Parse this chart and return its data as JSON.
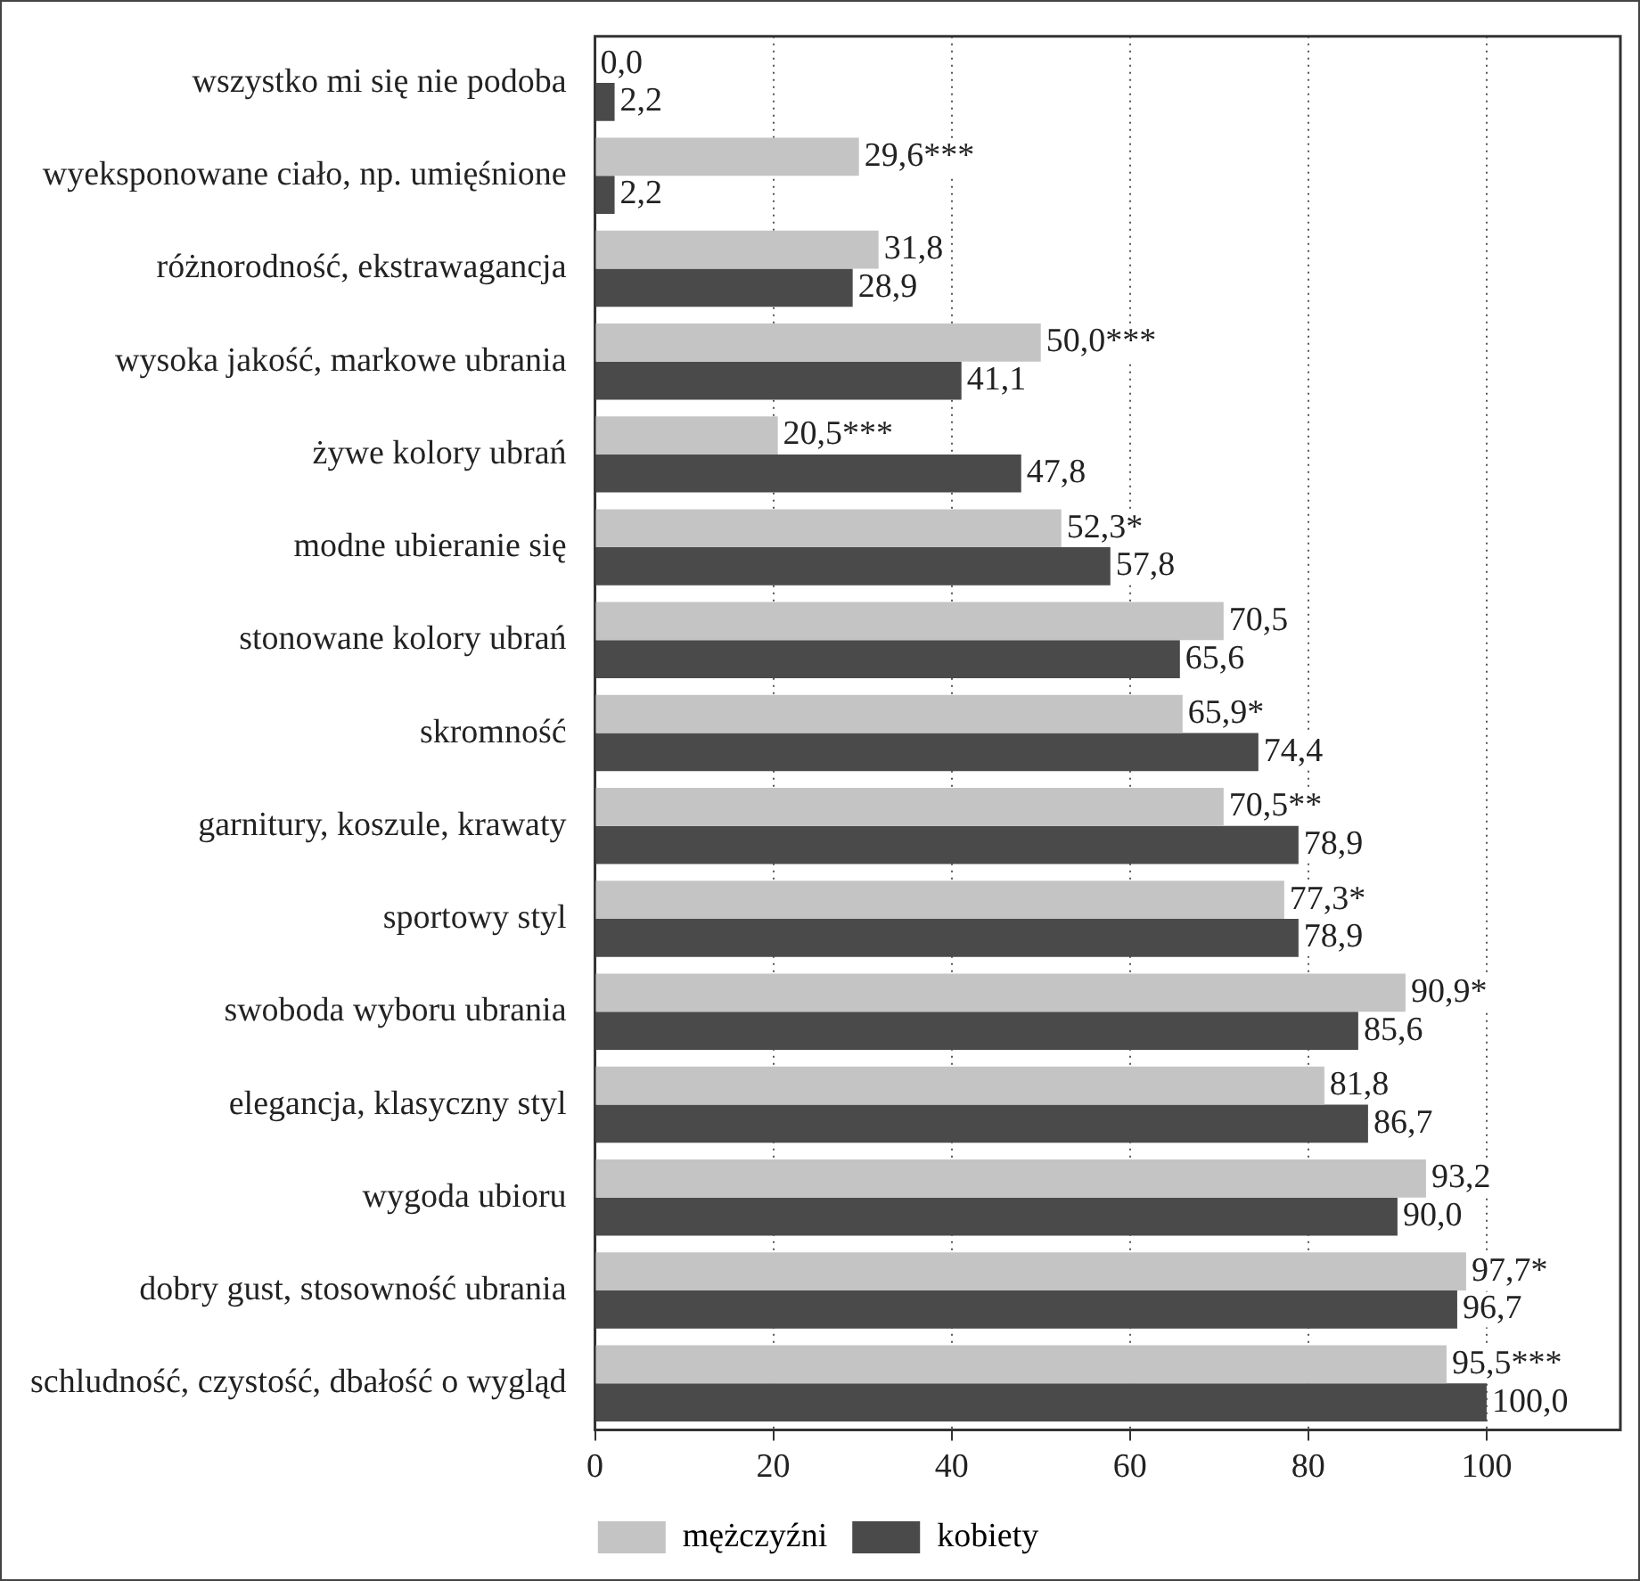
{
  "chart_data": {
    "type": "bar",
    "orientation": "horizontal",
    "categories": [
      "wszystko mi się nie podoba",
      "wyeksponowane ciało, np. umięśnione",
      "różnorodność, ekstrawagancja",
      "wysoka jakość, markowe ubrania",
      "żywe kolory ubrań",
      "modne ubieranie się",
      "stonowane kolory ubrań",
      "skromność",
      "garnitury, koszule, krawaty",
      "sportowy styl",
      "swoboda wyboru ubrania",
      "elegancja, klasyczny styl",
      "wygoda ubioru",
      "dobry gust, stosowność ubrania",
      "schludność, czystość, dbałość o wygląd"
    ],
    "series": [
      {
        "name": "mężczyźni",
        "color": "#c4c4c4",
        "values": [
          0.0,
          29.6,
          31.8,
          50.0,
          20.5,
          52.3,
          70.5,
          65.9,
          70.5,
          77.3,
          90.9,
          81.8,
          93.2,
          97.7,
          95.5
        ],
        "value_labels": [
          "0,0",
          "29,6***",
          "31,8",
          "50,0***",
          "20,5***",
          "52,3*",
          "70,5",
          "65,9*",
          "70,5**",
          "77,3*",
          "90,9*",
          "81,8",
          "93,2",
          "97,7*",
          "95,5***"
        ]
      },
      {
        "name": "kobiety",
        "color": "#4a4a4a",
        "values": [
          2.2,
          2.2,
          28.9,
          41.1,
          47.8,
          57.8,
          65.6,
          74.4,
          78.9,
          78.9,
          85.6,
          86.7,
          90.0,
          96.7,
          100.0
        ],
        "value_labels": [
          "2,2",
          "2,2",
          "28,9",
          "41,1",
          "47,8",
          "57,8",
          "65,6",
          "74,4",
          "78,9",
          "78,9",
          "85,6",
          "86,7",
          "90,0",
          "96,7",
          "100,0"
        ]
      }
    ],
    "xlim": [
      0,
      115
    ],
    "xticks": [
      0,
      20,
      40,
      60,
      80,
      100
    ],
    "grid": "x",
    "legend": "bottom"
  }
}
